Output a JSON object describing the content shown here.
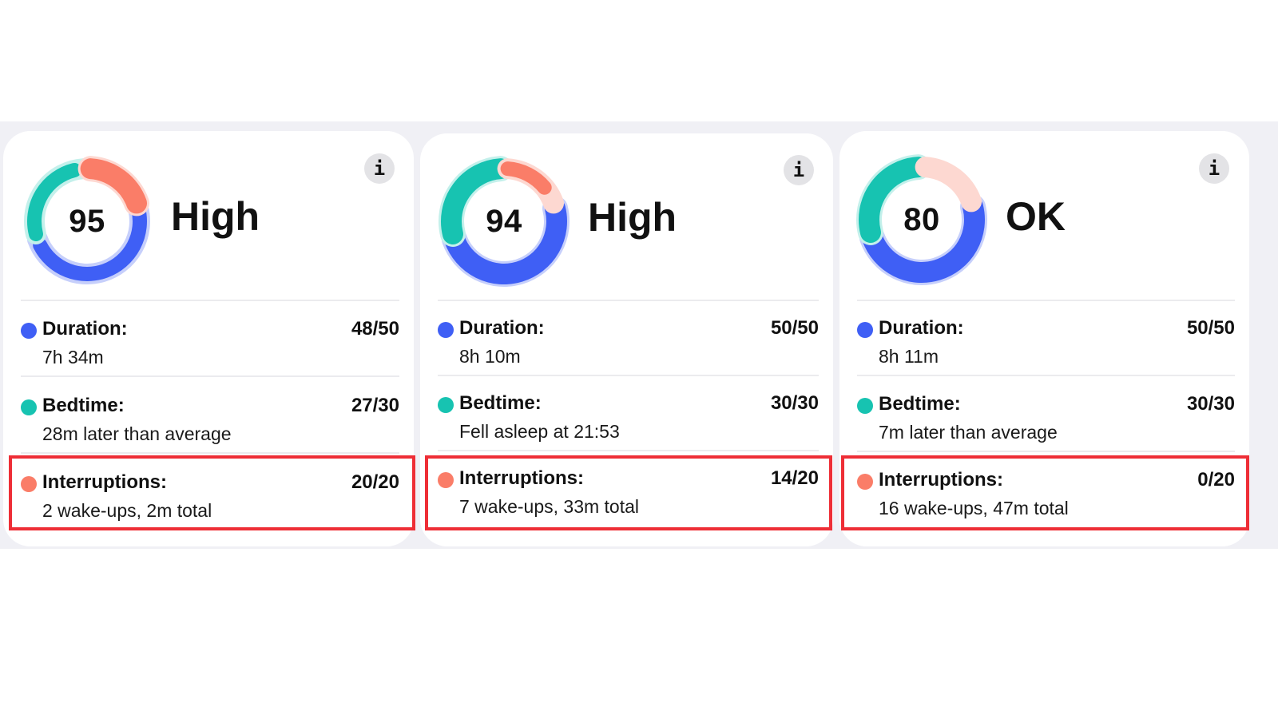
{
  "colors": {
    "duration": "#3f5ff5",
    "bedtime": "#17c3b1",
    "interruptions": "#fa7d68",
    "duration_track": "#c6cffb",
    "bedtime_track": "#c4f0eb",
    "interruptions_track": "#fdd8d1",
    "highlight": "#ee2e36",
    "panel_bg": "#f0f0f5",
    "info_bg": "#e3e3e6"
  },
  "cards": [
    {
      "score": "95",
      "rating": "High",
      "info_icon": "i",
      "metrics": [
        {
          "key": "duration",
          "label": "Duration:",
          "score": "48/50",
          "earned": 48,
          "max": 50,
          "detail": "7h 34m"
        },
        {
          "key": "bedtime",
          "label": "Bedtime:",
          "score": "27/30",
          "earned": 27,
          "max": 30,
          "detail": "28m later than average"
        },
        {
          "key": "interruptions",
          "label": "Interruptions:",
          "score": "20/20",
          "earned": 20,
          "max": 20,
          "detail": "2 wake-ups, 2m total"
        }
      ]
    },
    {
      "score": "94",
      "rating": "High",
      "info_icon": "i",
      "metrics": [
        {
          "key": "duration",
          "label": "Duration:",
          "score": "50/50",
          "earned": 50,
          "max": 50,
          "detail": "8h 10m"
        },
        {
          "key": "bedtime",
          "label": "Bedtime:",
          "score": "30/30",
          "earned": 30,
          "max": 30,
          "detail": "Fell asleep at 21:53"
        },
        {
          "key": "interruptions",
          "label": "Interruptions:",
          "score": "14/20",
          "earned": 14,
          "max": 20,
          "detail": "7 wake-ups, 33m total"
        }
      ]
    },
    {
      "score": "80",
      "rating": "OK",
      "info_icon": "i",
      "metrics": [
        {
          "key": "duration",
          "label": "Duration:",
          "score": "50/50",
          "earned": 50,
          "max": 50,
          "detail": "8h 11m"
        },
        {
          "key": "bedtime",
          "label": "Bedtime:",
          "score": "30/30",
          "earned": 30,
          "max": 30,
          "detail": "7m later than average"
        },
        {
          "key": "interruptions",
          "label": "Interruptions:",
          "score": "0/20",
          "earned": 0,
          "max": 20,
          "detail": "16 wake-ups, 47m total"
        }
      ]
    }
  ]
}
